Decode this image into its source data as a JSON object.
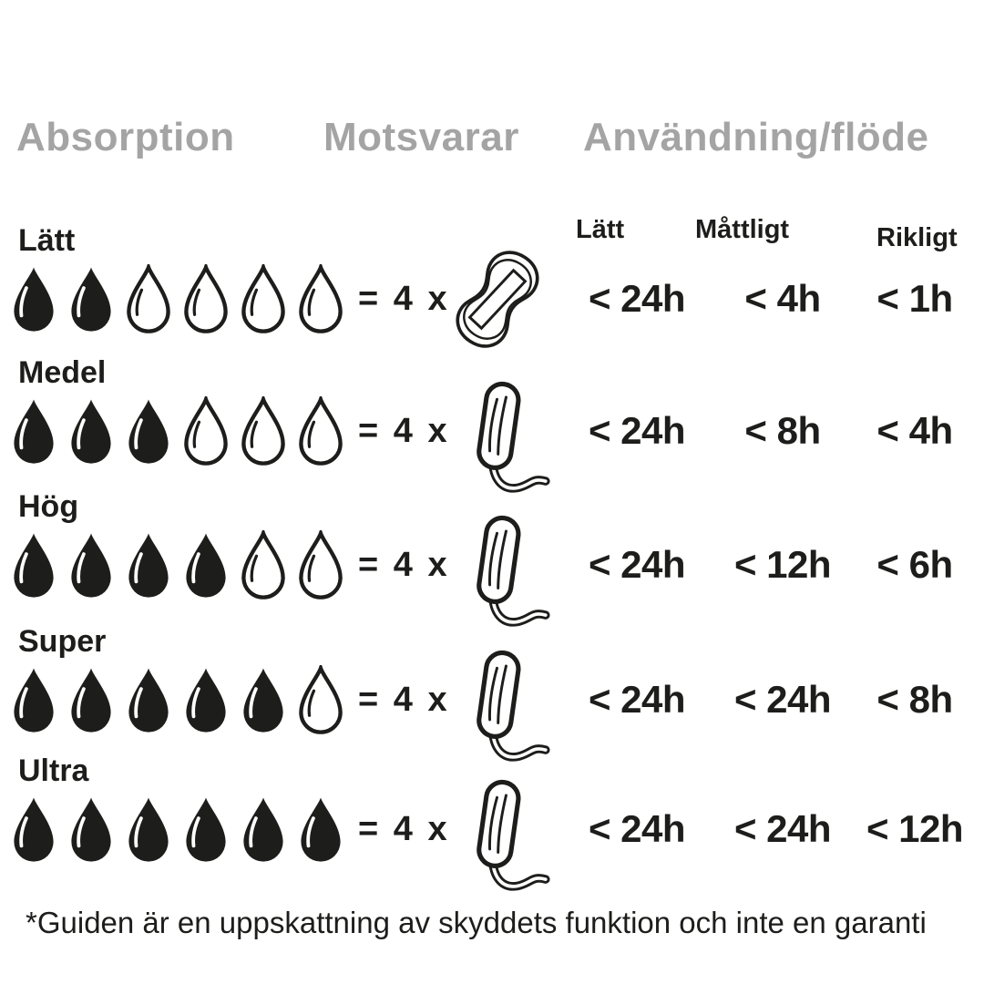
{
  "page": {
    "background": "#ffffff",
    "ink_color": "#1d1d1b",
    "muted_header_color": "#a4a4a4"
  },
  "headers": {
    "absorption": "Absorption",
    "equivalent": "Motsvarar",
    "usage": "Användning/flöde"
  },
  "flow_headers": [
    {
      "label": "Lätt"
    },
    {
      "label": "Måttligt"
    },
    {
      "label": "Rikligt"
    }
  ],
  "multiplier_label": "= 4 x",
  "rows": [
    {
      "level": "Lätt",
      "filled_drops": 2,
      "total_drops": 6,
      "product_icon": "pad-icon",
      "times": [
        "< 24h",
        "< 4h",
        "< 1h"
      ]
    },
    {
      "level": "Medel",
      "filled_drops": 3,
      "total_drops": 6,
      "product_icon": "tampon-icon",
      "times": [
        "< 24h",
        "< 8h",
        "< 4h"
      ]
    },
    {
      "level": "Hög",
      "filled_drops": 4,
      "total_drops": 6,
      "product_icon": "tampon-icon",
      "times": [
        "< 24h",
        "< 12h",
        "< 6h"
      ]
    },
    {
      "level": "Super",
      "filled_drops": 5,
      "total_drops": 6,
      "product_icon": "tampon-icon",
      "times": [
        "< 24h",
        "< 24h",
        "< 8h"
      ]
    },
    {
      "level": "Ultra",
      "filled_drops": 6,
      "total_drops": 6,
      "product_icon": "tampon-icon",
      "times": [
        "< 24h",
        "< 24h",
        "< 12h"
      ]
    }
  ],
  "footnote": "*Guiden är en uppskattning av skyddets funktion och inte en garanti"
}
